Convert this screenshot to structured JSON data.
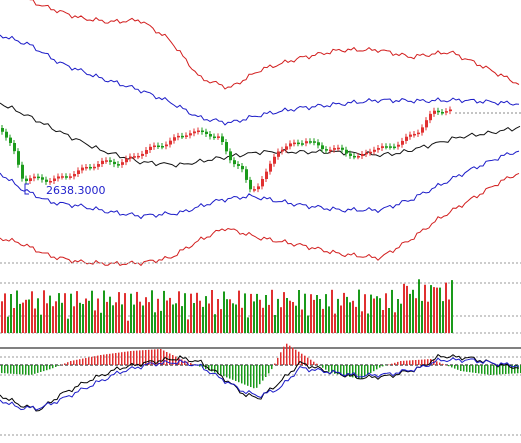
{
  "chart_data": {
    "type": "candlestick",
    "panels": [
      {
        "id": "price",
        "type": "candlestick",
        "indicators": [
          "bollinger-bands-inner",
          "bollinger-bands-outer",
          "moving-average"
        ]
      },
      {
        "id": "volume",
        "type": "bar"
      },
      {
        "id": "macd",
        "type": "histogram+line"
      }
    ],
    "annotations": [
      {
        "text": "2638.3000",
        "marker": "low-point-bracket"
      }
    ],
    "colors": {
      "up": "#e03030",
      "down": "#1a9a1a",
      "inner_band": "#1c1cc8",
      "outer_band": "#d21e1e",
      "moving_average": "#111111",
      "annotation": "#2222cc"
    },
    "grid": "dashed-horizontal",
    "legend": "none"
  }
}
